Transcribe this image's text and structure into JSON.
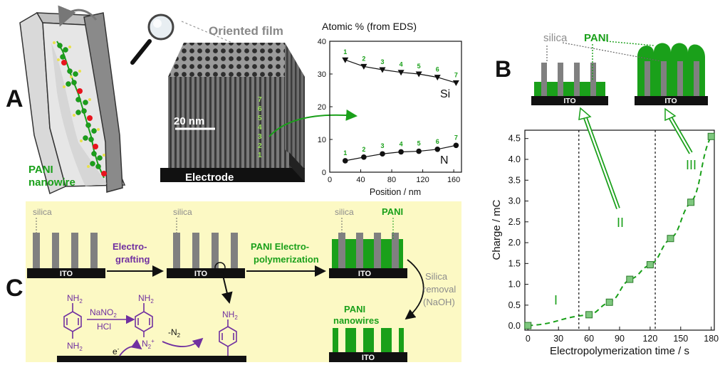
{
  "colors": {
    "green": "#1aa01a",
    "dark_green": "#0e7a0e",
    "purple": "#7030a0",
    "silica_gray": "#808080",
    "label_gray": "#8c8c8c",
    "panel_c_bg": "#fcf9c4",
    "ito_black": "#111111",
    "eds_number_green": "#1aa01a",
    "nitrogen_red": "#e8141e",
    "hydrogen_yellow": "#e8e14a"
  },
  "panel_a": {
    "letter": "A",
    "pani_label_1": "PANI",
    "pani_label_2": "nanowire",
    "film_title": "Oriented film",
    "scale_bar": "20 nm",
    "electrode_label": "Electrode",
    "layer_numbers": [
      "7",
      "6",
      "5",
      "4",
      "3",
      "2",
      "1"
    ]
  },
  "eds_chart": {
    "title": "Atomic % (from EDS)",
    "xlabel": "Position / nm",
    "x_ticks": [
      "0",
      "40",
      "80",
      "120",
      "160"
    ],
    "y_ticks": [
      "0",
      "10",
      "20",
      "30",
      "40"
    ],
    "series_labels": [
      "Si",
      "N"
    ],
    "point_numbers": [
      "1",
      "2",
      "3",
      "4",
      "5",
      "6",
      "7"
    ]
  },
  "panel_b": {
    "letter": "B",
    "silica_label": "silica",
    "pani_label": "PANI",
    "ito_left": "ITO",
    "ito_right": "ITO",
    "region_I": "I",
    "region_II": "II",
    "region_III": "III"
  },
  "charge_chart": {
    "ylabel": "Charge / mC",
    "xlabel": "Electropolymerization time / s",
    "x_ticks": [
      "0",
      "30",
      "60",
      "90",
      "120",
      "150",
      "180"
    ],
    "y_ticks": [
      "0.0",
      "0.5",
      "1.0",
      "1.5",
      "2.0",
      "2.5",
      "3.0",
      "3.5",
      "4.0",
      "4.5"
    ]
  },
  "panel_c": {
    "letter": "C",
    "silica_1": "silica",
    "silica_2": "silica",
    "silica_3": "silica",
    "pani_top": "PANI",
    "ito_1": "ITO",
    "ito_2": "ITO",
    "ito_3": "ITO",
    "ito_4": "ITO",
    "step1_line1": "Electro-",
    "step1_line2": "grafting",
    "step2_line1": "PANI Electro-",
    "step2_line2": "polymerization",
    "step3_line1": "Silica",
    "step3_line2": "removal",
    "step3_line3": "(NaOH)",
    "nanowires_line1": "PANI",
    "nanowires_line2": "nanowires",
    "reagent_1": "NaNO",
    "reagent_1_sub": "2",
    "reagent_2": "HCl",
    "amine": "NH",
    "amine_sub": "2",
    "diazonium": "N",
    "diazonium_sub": "2",
    "diazonium_sup": "+",
    "electron": "e",
    "electron_sup": "-",
    "loss_n2": "-N",
    "loss_n2_sub": "2"
  },
  "chart_data": [
    {
      "type": "line",
      "title": "Atomic % (from EDS)",
      "xlabel": "Position / nm",
      "ylabel": "",
      "xlim": [
        0,
        170
      ],
      "ylim": [
        0,
        40
      ],
      "x_ticks": [
        0,
        40,
        80,
        120,
        160
      ],
      "y_ticks": [
        0,
        10,
        20,
        30,
        40
      ],
      "grid": false,
      "series": [
        {
          "name": "Si",
          "marker": "triangle-down",
          "x": [
            20,
            44,
            68,
            92,
            115,
            139,
            163
          ],
          "y": [
            34.3,
            32.3,
            31.3,
            30.5,
            30.0,
            29.0,
            27.3
          ],
          "point_labels": [
            "1",
            "2",
            "3",
            "4",
            "5",
            "6",
            "7"
          ]
        },
        {
          "name": "N",
          "marker": "circle",
          "x": [
            20,
            44,
            68,
            92,
            115,
            139,
            163
          ],
          "y": [
            3.5,
            4.6,
            5.6,
            6.2,
            6.4,
            7.0,
            8.2
          ],
          "point_labels": [
            "1",
            "2",
            "3",
            "4",
            "5",
            "6",
            "7"
          ]
        }
      ]
    },
    {
      "type": "scatter",
      "title": "",
      "xlabel": "Electropolymerization time / s",
      "ylabel": "Charge / mC",
      "xlim": [
        -3,
        183
      ],
      "ylim": [
        -0.1,
        4.7
      ],
      "x_ticks": [
        0,
        30,
        60,
        90,
        120,
        150,
        180
      ],
      "y_ticks": [
        0,
        0.5,
        1.0,
        1.5,
        2.0,
        2.5,
        3.0,
        3.5,
        4.0,
        4.5
      ],
      "grid": false,
      "vlines": [
        50,
        125
      ],
      "regions": [
        "I",
        "II",
        "III"
      ],
      "series": [
        {
          "marker": "square",
          "trend": "dashed",
          "x": [
            0,
            60,
            80,
            100,
            120,
            140,
            160,
            180
          ],
          "y": [
            0.01,
            0.27,
            0.57,
            1.12,
            1.47,
            2.1,
            2.97,
            4.55
          ]
        }
      ]
    }
  ]
}
